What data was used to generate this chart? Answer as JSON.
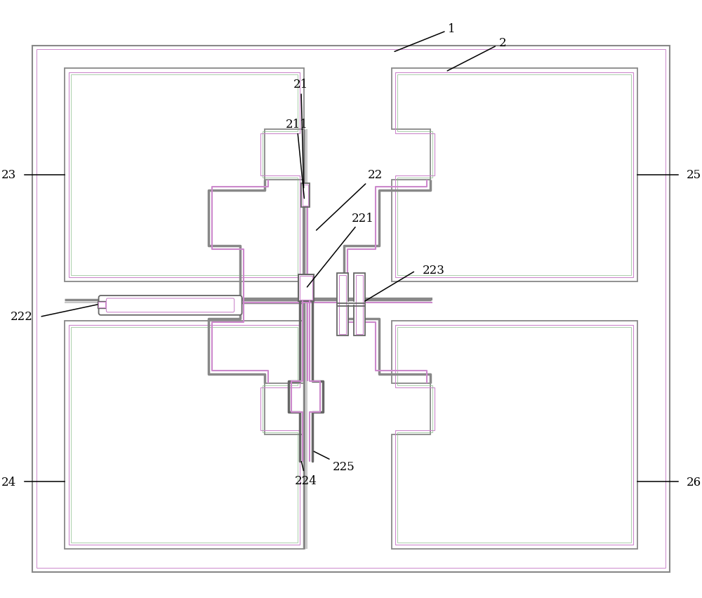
{
  "bg": "#ffffff",
  "outer_fc": "#ffffff",
  "outer_ec": "#888888",
  "patch_fc": "#ffffff",
  "patch_ec": "#888888",
  "purple_ec": "#cc88cc",
  "green_ec": "#88bb88",
  "feed_color": "#888888",
  "dark_color": "#333333",
  "comp_fc": "#ffffff",
  "comp_ec": "#666666",
  "fig_w": 10.0,
  "fig_h": 8.53,
  "dpi": 100
}
